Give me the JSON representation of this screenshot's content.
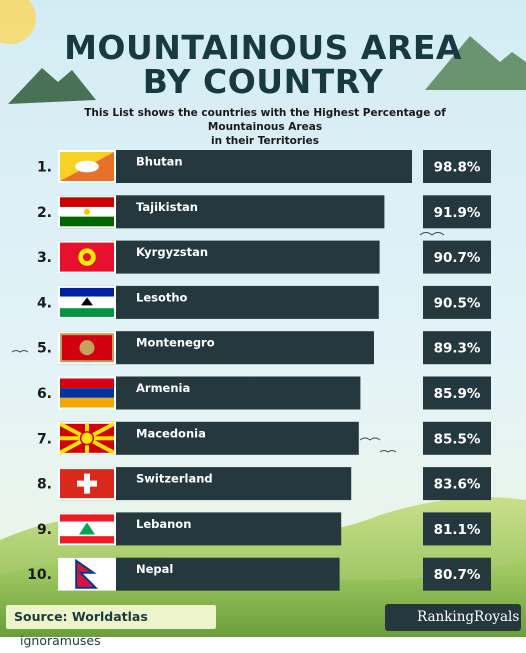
{
  "title_line1": "MOUNTAINOUS AREA",
  "title_line2": "BY COUNTRY",
  "subtitle_line1": "This List shows the countries with the Highest Percentage of Mountainous Areas",
  "subtitle_line2": "in their Territories",
  "footer": {
    "source_label": "Source: Worldatlas",
    "source_credit": "ignoramuses",
    "brand": "RankingRoyals",
    "brand_icon": "globe-logo-icon"
  },
  "colors": {
    "title": "#17393f",
    "bar": "#24383d",
    "sky_top": "#c9e6f1",
    "hills": "#9bc56a"
  },
  "chart_data": {
    "type": "bar",
    "orientation": "horizontal",
    "categories": [
      "Bhutan",
      "Tajikistan",
      "Kyrgyzstan",
      "Lesotho",
      "Montenegro",
      "Armenia",
      "Macedonia",
      "Switzerland",
      "Lebanon",
      "Nepal"
    ],
    "ranks": [
      "1.",
      "2.",
      "3.",
      "4.",
      "5.",
      "6.",
      "7.",
      "8.",
      "9.",
      "10."
    ],
    "values": [
      98.8,
      91.9,
      90.7,
      90.5,
      89.3,
      85.9,
      85.5,
      83.6,
      81.1,
      80.7
    ],
    "value_labels": [
      "98.8%",
      "91.9%",
      "90.7%",
      "90.5%",
      "89.3%",
      "85.9%",
      "85.5%",
      "83.6%",
      "81.1%",
      "80.7%"
    ],
    "flag_icons": [
      "flag-bhutan-icon",
      "flag-tajikistan-icon",
      "flag-kyrgyzstan-icon",
      "flag-lesotho-icon",
      "flag-montenegro-icon",
      "flag-armenia-icon",
      "flag-macedonia-icon",
      "flag-switzerland-icon",
      "flag-lebanon-icon",
      "flag-nepal-icon"
    ],
    "unit": "%"
  }
}
